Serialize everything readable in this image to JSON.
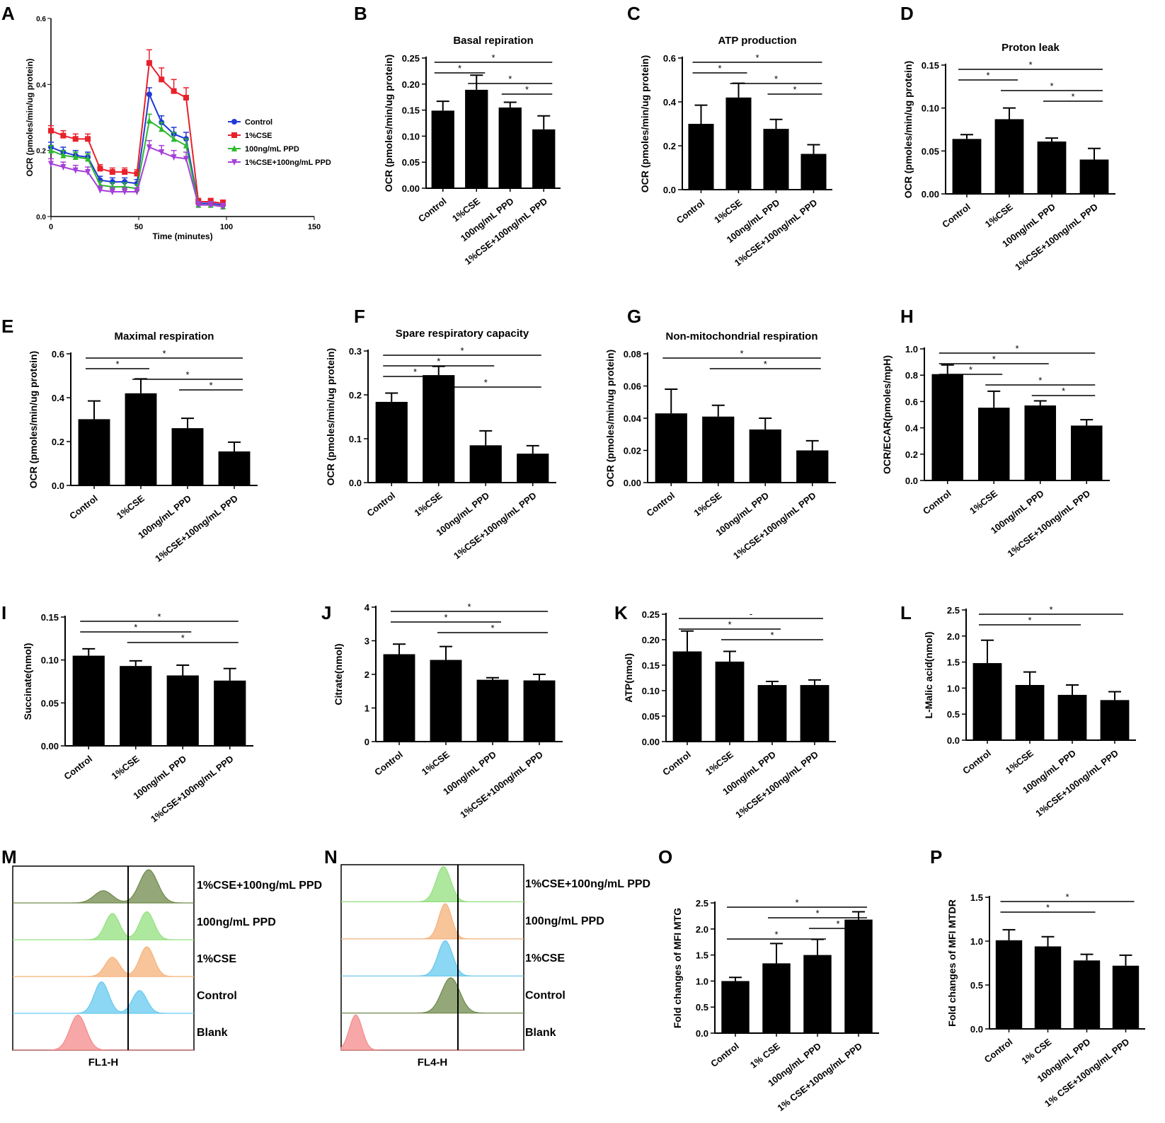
{
  "colors": {
    "bar": "#000000",
    "series": [
      "#1f3ad6",
      "#e8212b",
      "#2eb82e",
      "#a63fd9"
    ],
    "hist_blank": "#f48a8a",
    "hist_control_mtg": "#66c9ef",
    "hist_cse": "#f5b27a",
    "hist_ppd": "#93e07f",
    "hist_combo": "#6f8a4c"
  },
  "chart_data": [
    {
      "panel": "A",
      "type": "line",
      "xlabel": "Time (minutes)",
      "ylabel": "OCR (pmoles/min/ug protein)",
      "xlim": [
        0,
        150
      ],
      "ylim": [
        0,
        0.6
      ],
      "xticks": [
        "0",
        "50",
        "100",
        "150"
      ],
      "yticks": [
        "0.0",
        "0.2",
        "0.4",
        "0.6"
      ],
      "x": [
        0,
        7,
        14,
        21,
        28,
        35,
        42,
        49,
        56,
        63,
        70,
        77,
        84,
        91,
        98
      ],
      "series": [
        {
          "name": "Control",
          "marker": "circle",
          "values": [
            0.21,
            0.195,
            0.185,
            0.18,
            0.11,
            0.105,
            0.105,
            0.1,
            0.37,
            0.285,
            0.25,
            0.235,
            0.04,
            0.04,
            0.035
          ],
          "errors": [
            0.015,
            0.015,
            0.015,
            0.015,
            0.012,
            0.012,
            0.012,
            0.012,
            0.02,
            0.02,
            0.02,
            0.02,
            0.01,
            0.01,
            0.01
          ]
        },
        {
          "name": "1%CSE",
          "marker": "square",
          "values": [
            0.26,
            0.245,
            0.235,
            0.235,
            0.145,
            0.135,
            0.135,
            0.13,
            0.465,
            0.415,
            0.38,
            0.36,
            0.045,
            0.045,
            0.04
          ],
          "errors": [
            0.015,
            0.015,
            0.015,
            0.015,
            0.012,
            0.012,
            0.012,
            0.012,
            0.04,
            0.035,
            0.035,
            0.03,
            0.01,
            0.01,
            0.01
          ]
        },
        {
          "name": "100ng/mL PPD",
          "marker": "triangle",
          "values": [
            0.2,
            0.185,
            0.18,
            0.175,
            0.095,
            0.09,
            0.09,
            0.085,
            0.29,
            0.265,
            0.235,
            0.215,
            0.035,
            0.035,
            0.03
          ],
          "errors": [
            0.015,
            0.015,
            0.015,
            0.015,
            0.012,
            0.012,
            0.012,
            0.012,
            0.02,
            0.02,
            0.02,
            0.02,
            0.01,
            0.01,
            0.01
          ]
        },
        {
          "name": "1%CSE+100ng/mL PPD",
          "marker": "down-triangle",
          "values": [
            0.16,
            0.15,
            0.14,
            0.135,
            0.08,
            0.075,
            0.075,
            0.075,
            0.21,
            0.195,
            0.18,
            0.175,
            0.035,
            0.035,
            0.03
          ],
          "errors": [
            0.015,
            0.015,
            0.015,
            0.015,
            0.012,
            0.012,
            0.012,
            0.012,
            0.02,
            0.02,
            0.02,
            0.02,
            0.01,
            0.01,
            0.01
          ]
        }
      ]
    },
    {
      "panel": "B",
      "type": "bar",
      "title": "Basal repiration",
      "ylabel": "OCR (pmoles/min/ug protein)",
      "ylim": [
        0,
        0.25
      ],
      "yticks": [
        "0.00",
        "0.05",
        "0.10",
        "0.15",
        "0.20",
        "0.25"
      ],
      "categories": [
        "Control",
        "1%CSE",
        "100ng/mL PPD",
        "1%CSE+100ng/mL PPD"
      ],
      "values": [
        0.149,
        0.189,
        0.155,
        0.113
      ],
      "errors": [
        0.018,
        0.028,
        0.01,
        0.026
      ],
      "sig": [
        {
          "from": 0,
          "to": 3,
          "label": "*"
        },
        {
          "from": 0,
          "to": 1,
          "label": "*"
        },
        {
          "from": 1,
          "to": 3,
          "label": "*"
        },
        {
          "from": 2,
          "to": 3,
          "label": "*"
        }
      ]
    },
    {
      "panel": "C",
      "type": "bar",
      "title": "ATP production",
      "ylabel": "OCR (pmoles/min/ug protein)",
      "ylim": [
        0,
        0.6
      ],
      "yticks": [
        "0.0",
        "0.2",
        "0.4",
        "0.6"
      ],
      "categories": [
        "Control",
        "1%CSE",
        "100ng/mL PPD",
        "1%CSE+100ng/mL PPD"
      ],
      "values": [
        0.3,
        0.42,
        0.277,
        0.163
      ],
      "errors": [
        0.085,
        0.065,
        0.043,
        0.042
      ],
      "sig": [
        {
          "from": 0,
          "to": 3,
          "label": "*"
        },
        {
          "from": 0,
          "to": 1,
          "label": "*"
        },
        {
          "from": 1,
          "to": 3,
          "label": "*"
        },
        {
          "from": 2,
          "to": 3,
          "label": "*"
        }
      ]
    },
    {
      "panel": "D",
      "type": "bar",
      "title": "Proton leak",
      "ylabel": "OCR (pmoles/min/ug protein)",
      "ylim": [
        0,
        0.15
      ],
      "yticks": [
        "0.00",
        "0.05",
        "0.10",
        "0.15"
      ],
      "categories": [
        "Control",
        "1%CSE",
        "100ng/mL PPD",
        "1%CSE+100ng/mL PPD"
      ],
      "values": [
        0.064,
        0.087,
        0.061,
        0.04
      ],
      "errors": [
        0.005,
        0.013,
        0.004,
        0.013
      ],
      "sig": [
        {
          "from": 0,
          "to": 3,
          "label": "*"
        },
        {
          "from": 0,
          "to": 1,
          "label": "*"
        },
        {
          "from": 1,
          "to": 3,
          "label": "*"
        },
        {
          "from": 2,
          "to": 3,
          "label": "*"
        }
      ]
    },
    {
      "panel": "E",
      "type": "bar",
      "title": "Maximal respiration",
      "ylabel": "OCR (pmoles/min/ug protein)",
      "ylim": [
        0,
        0.6
      ],
      "yticks": [
        "0.0",
        "0.2",
        "0.4",
        "0.6"
      ],
      "categories": [
        "Control",
        "1%CSE",
        "100ng/mL PPD",
        "1%CSE+100ng/mL PPD"
      ],
      "values": [
        0.302,
        0.42,
        0.261,
        0.155
      ],
      "errors": [
        0.083,
        0.066,
        0.045,
        0.042
      ],
      "sig": [
        {
          "from": 0,
          "to": 3,
          "label": "*"
        },
        {
          "from": 0,
          "to": 1,
          "label": "*"
        },
        {
          "from": 1,
          "to": 3,
          "label": "*"
        },
        {
          "from": 2,
          "to": 3,
          "label": "*"
        }
      ]
    },
    {
      "panel": "F",
      "type": "bar",
      "title": "Spare respiratory capacity",
      "ylabel": "OCR (pmoles/min/ug protein)",
      "ylim": [
        0,
        0.3
      ],
      "yticks": [
        "0.0",
        "0.1",
        "0.2",
        "0.3"
      ],
      "categories": [
        "Control",
        "1%CSE",
        "100ng/mL PPD",
        "1%CSE+100ng/mL PPD"
      ],
      "values": [
        0.184,
        0.245,
        0.085,
        0.066
      ],
      "errors": [
        0.02,
        0.02,
        0.033,
        0.018
      ],
      "sig": [
        {
          "from": 0,
          "to": 3,
          "label": "*"
        },
        {
          "from": 0,
          "to": 2,
          "label": "*"
        },
        {
          "from": 0,
          "to": 1,
          "label": "*"
        },
        {
          "from": 1,
          "to": 3,
          "label": "*"
        }
      ]
    },
    {
      "panel": "G",
      "type": "bar",
      "title": "Non-mitochondrial respiration",
      "ylabel": "OCR (pmoles/min/ug protein)",
      "ylim": [
        0,
        0.08
      ],
      "yticks": [
        "0.00",
        "0.02",
        "0.04",
        "0.06",
        "0.08"
      ],
      "categories": [
        "Control",
        "1%CSE",
        "100ng/mL PPD",
        "1%CSE+100ng/mL PPD"
      ],
      "values": [
        0.043,
        0.041,
        0.033,
        0.02
      ],
      "errors": [
        0.015,
        0.007,
        0.007,
        0.006
      ],
      "sig": [
        {
          "from": 0,
          "to": 3,
          "label": "*"
        },
        {
          "from": 1,
          "to": 3,
          "label": "*"
        }
      ]
    },
    {
      "panel": "H",
      "type": "bar",
      "title": "",
      "ylabel": "OCR/ECAR(pmoles/mpH)",
      "ylim": [
        0,
        1.0
      ],
      "yticks": [
        "0.0",
        "0.2",
        "0.4",
        "0.6",
        "0.8",
        "1.0"
      ],
      "categories": [
        "Control",
        "1%CSE",
        "100ng/mL PPD",
        "1%CSE+100ng/mL PPD"
      ],
      "values": [
        0.808,
        0.553,
        0.57,
        0.417
      ],
      "errors": [
        0.07,
        0.125,
        0.035,
        0.045
      ],
      "sig": [
        {
          "from": 0,
          "to": 3,
          "label": "*"
        },
        {
          "from": 0,
          "to": 2,
          "label": "*"
        },
        {
          "from": 0,
          "to": 1,
          "label": "*"
        },
        {
          "from": 1,
          "to": 3,
          "label": "*"
        },
        {
          "from": 2,
          "to": 3,
          "label": "*"
        }
      ]
    },
    {
      "panel": "I",
      "type": "bar",
      "title": "",
      "ylabel": "Succinate(nmol)",
      "ylim": [
        0,
        0.15
      ],
      "yticks": [
        "0.00",
        "0.05",
        "0.10",
        "0.15"
      ],
      "categories": [
        "Control",
        "1%CSE",
        "100ng/mL PPD",
        "1%CSE+100ng/mL PPD"
      ],
      "values": [
        0.105,
        0.093,
        0.082,
        0.076
      ],
      "errors": [
        0.008,
        0.006,
        0.012,
        0.014
      ],
      "sig": [
        {
          "from": 0,
          "to": 3,
          "label": "*"
        },
        {
          "from": 0,
          "to": 2,
          "label": "*"
        },
        {
          "from": 1,
          "to": 3,
          "label": "*"
        }
      ]
    },
    {
      "panel": "J",
      "type": "bar",
      "title": "",
      "ylabel": "Citrate(nmol)",
      "ylim": [
        0,
        4
      ],
      "yticks": [
        "0",
        "1",
        "2",
        "3",
        "4"
      ],
      "categories": [
        "Control",
        "1%CSE",
        "100ng/mL PPD",
        "1%CSE+100ng/mL PPD"
      ],
      "values": [
        2.6,
        2.43,
        1.84,
        1.82
      ],
      "errors": [
        0.3,
        0.4,
        0.06,
        0.18
      ],
      "sig": [
        {
          "from": 0,
          "to": 3,
          "label": "*"
        },
        {
          "from": 0,
          "to": 2,
          "label": "*"
        },
        {
          "from": 1,
          "to": 3,
          "label": "*"
        }
      ]
    },
    {
      "panel": "K",
      "type": "bar",
      "title": "",
      "ylabel": "ATP(nmol)",
      "ylim": [
        0,
        0.25
      ],
      "yticks": [
        "0.00",
        "0.05",
        "0.10",
        "0.15",
        "0.20",
        "0.25"
      ],
      "categories": [
        "Control",
        "1%CSE",
        "100ng/mL PPD",
        "1%CSE+100ng/mL PPD"
      ],
      "values": [
        0.177,
        0.157,
        0.111,
        0.111
      ],
      "errors": [
        0.04,
        0.02,
        0.007,
        0.01
      ],
      "sig": [
        {
          "from": 0,
          "to": 3,
          "label": "-"
        },
        {
          "from": 0,
          "to": 2,
          "label": "*"
        },
        {
          "from": 1,
          "to": 3,
          "label": "*"
        }
      ]
    },
    {
      "panel": "L",
      "type": "bar",
      "title": "",
      "ylabel": "L-Malic acid(nmol)",
      "ylim": [
        0,
        2.5
      ],
      "yticks": [
        "0.0",
        "0.5",
        "1.0",
        "1.5",
        "2.0",
        "2.5"
      ],
      "categories": [
        "Control",
        "1%CSE",
        "100ng/mL PPD",
        "1%CSE+100ng/mL PPD"
      ],
      "values": [
        1.48,
        1.06,
        0.87,
        0.77
      ],
      "errors": [
        0.44,
        0.25,
        0.19,
        0.16
      ],
      "sig": [
        {
          "from": 0,
          "to": 3,
          "label": "*"
        },
        {
          "from": 0,
          "to": 2,
          "label": "*"
        }
      ]
    },
    {
      "panel": "O",
      "type": "bar",
      "title": "",
      "ylabel": "Fold changes of MFI MTG",
      "ylim": [
        0,
        2.5
      ],
      "yticks": [
        "0.0",
        "0.5",
        "1.0",
        "1.5",
        "2.0",
        "2.5"
      ],
      "categories": [
        "Control",
        "1% CSE",
        "100ng/mL PPD",
        "1% CSE+100ng/mL PPD"
      ],
      "values": [
        1.0,
        1.34,
        1.5,
        2.18
      ],
      "errors": [
        0.07,
        0.38,
        0.3,
        0.15
      ],
      "sig": [
        {
          "from": 0,
          "to": 3,
          "label": "*"
        },
        {
          "from": 1,
          "to": 3,
          "label": "*"
        },
        {
          "from": 2,
          "to": 3,
          "label": "*"
        },
        {
          "from": 0,
          "to": 2,
          "label": "*"
        }
      ]
    },
    {
      "panel": "P",
      "type": "bar",
      "title": "",
      "ylabel": "Fold changes of MFI MTDR",
      "ylim": [
        0,
        1.5
      ],
      "yticks": [
        "0.0",
        "0.5",
        "1.0",
        "1.5"
      ],
      "categories": [
        "Control",
        "1% CSE",
        "100ng/mL PPD",
        "1% CSE+100ng/mL PPD"
      ],
      "values": [
        1.01,
        0.94,
        0.78,
        0.72
      ],
      "errors": [
        0.12,
        0.11,
        0.07,
        0.12
      ],
      "sig": [
        {
          "from": 0,
          "to": 3,
          "label": "*"
        },
        {
          "from": 0,
          "to": 2,
          "label": "*"
        }
      ]
    },
    {
      "panel": "M",
      "type": "histogram",
      "xlabel": "FL1-H",
      "tracks": [
        {
          "label": "1%CSE+100ng/mL PPD",
          "color_key": "hist_combo",
          "peaks": [
            [
              0.5,
              0.05,
              0.35
            ],
            [
              0.75,
              0.05,
              0.95
            ]
          ]
        },
        {
          "label": "100ng/mL PPD",
          "color_key": "hist_ppd",
          "peaks": [
            [
              0.55,
              0.04,
              0.75
            ],
            [
              0.74,
              0.04,
              0.8
            ]
          ]
        },
        {
          "label": "1%CSE",
          "color_key": "hist_cse",
          "peaks": [
            [
              0.55,
              0.04,
              0.55
            ],
            [
              0.74,
              0.04,
              0.85
            ]
          ]
        },
        {
          "label": "Control",
          "color_key": "hist_control_mtg",
          "peaks": [
            [
              0.49,
              0.04,
              0.9
            ],
            [
              0.7,
              0.04,
              0.65
            ]
          ]
        },
        {
          "label": "Blank",
          "color_key": "hist_blank",
          "peaks": [
            [
              0.36,
              0.045,
              1.0
            ]
          ]
        }
      ]
    },
    {
      "panel": "N",
      "type": "histogram",
      "xlabel": "FL4-H",
      "tracks": [
        {
          "label": "1%CSE+100ng/mL PPD",
          "color_key": "hist_ppd",
          "peaks": [
            [
              0.56,
              0.04,
              1.0
            ]
          ]
        },
        {
          "label": "100ng/mL PPD",
          "color_key": "hist_cse",
          "peaks": [
            [
              0.57,
              0.035,
              1.0
            ]
          ]
        },
        {
          "label": "1%CSE",
          "color_key": "hist_control_mtg",
          "peaks": [
            [
              0.57,
              0.04,
              1.0
            ]
          ]
        },
        {
          "label": "Control",
          "color_key": "hist_combo",
          "peaks": [
            [
              0.6,
              0.05,
              1.0
            ]
          ]
        },
        {
          "label": "Blank",
          "color_key": "hist_blank",
          "peaks": [
            [
              0.08,
              0.035,
              1.0
            ]
          ]
        }
      ]
    }
  ]
}
